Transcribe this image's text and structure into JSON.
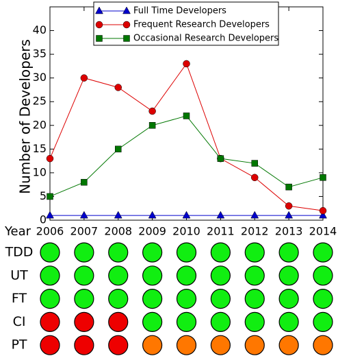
{
  "chart_data": {
    "type": "line",
    "xlabel": "Year",
    "ylabel": "Number of Developers",
    "x": [
      2006,
      2007,
      2008,
      2009,
      2010,
      2011,
      2012,
      2013,
      2014
    ],
    "xlim": [
      2006,
      2014
    ],
    "xticks": [
      2006,
      2007,
      2008,
      2009,
      2010,
      2011,
      2012,
      2013,
      2014
    ],
    "ylim": [
      0,
      45
    ],
    "yticks": [
      0,
      5,
      10,
      15,
      20,
      25,
      30,
      35,
      40
    ],
    "legend": "upper center",
    "series": [
      {
        "name": "Full Time Developers",
        "color": "#0000cc",
        "marker": "triangle",
        "values": [
          1,
          1,
          1,
          1,
          1,
          1,
          1,
          1,
          1
        ]
      },
      {
        "name": "Frequent Research Developers",
        "color": "#dd0000",
        "marker": "circle",
        "values": [
          13,
          30,
          28,
          23,
          33,
          13,
          9,
          3,
          2
        ]
      },
      {
        "name": "Occasional Research Developers",
        "color": "#007700",
        "marker": "square",
        "values": [
          5,
          8,
          15,
          20,
          22,
          13,
          12,
          7,
          9
        ]
      }
    ]
  },
  "matrix": {
    "rows": [
      {
        "label": "TDD",
        "colors": [
          "#11ee11",
          "#11ee11",
          "#11ee11",
          "#11ee11",
          "#11ee11",
          "#11ee11",
          "#11ee11",
          "#11ee11",
          "#11ee11"
        ]
      },
      {
        "label": "UT",
        "colors": [
          "#11ee11",
          "#11ee11",
          "#11ee11",
          "#11ee11",
          "#11ee11",
          "#11ee11",
          "#11ee11",
          "#11ee11",
          "#11ee11"
        ]
      },
      {
        "label": "FT",
        "colors": [
          "#11ee11",
          "#11ee11",
          "#11ee11",
          "#11ee11",
          "#11ee11",
          "#11ee11",
          "#11ee11",
          "#11ee11",
          "#11ee11"
        ]
      },
      {
        "label": "CI",
        "colors": [
          "#ee0000",
          "#ee0000",
          "#ee0000",
          "#11ee11",
          "#11ee11",
          "#11ee11",
          "#11ee11",
          "#11ee11",
          "#11ee11"
        ]
      },
      {
        "label": "PT",
        "colors": [
          "#ee0000",
          "#ee0000",
          "#ee0000",
          "#ff7700",
          "#ff7700",
          "#ff7700",
          "#ff7700",
          "#ff7700",
          "#ff7700"
        ]
      }
    ]
  }
}
